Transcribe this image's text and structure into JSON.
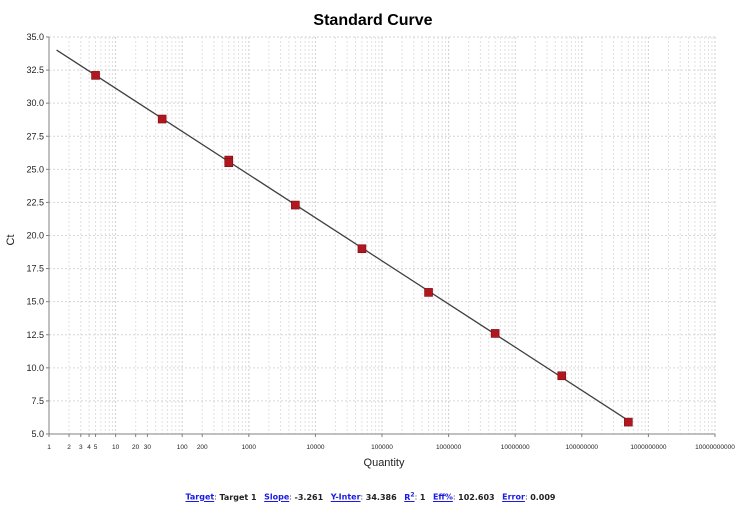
{
  "chart_data": {
    "type": "scatter",
    "title": "Standard Curve",
    "xlabel": "Quantity",
    "ylabel": "Ct",
    "x_scale": "log",
    "xlim": [
      1,
      10000000000
    ],
    "ylim": [
      5.0,
      35.0
    ],
    "grid": true,
    "x_tick_labels": [
      {
        "value": 1,
        "label": "1"
      },
      {
        "value": 2,
        "label": "2"
      },
      {
        "value": 3,
        "label": "3"
      },
      {
        "value": 4,
        "label": "4"
      },
      {
        "value": 5,
        "label": "5"
      },
      {
        "value": 10,
        "label": "10"
      },
      {
        "value": 20,
        "label": "20"
      },
      {
        "value": 30,
        "label": "30"
      },
      {
        "value": 100,
        "label": "100"
      },
      {
        "value": 200,
        "label": "200"
      },
      {
        "value": 1000,
        "label": "1000"
      },
      {
        "value": 10000,
        "label": "10000"
      },
      {
        "value": 100000,
        "label": "100000"
      },
      {
        "value": 1000000,
        "label": "1000000"
      },
      {
        "value": 10000000,
        "label": "10000000"
      },
      {
        "value": 100000000,
        "label": "100000000"
      },
      {
        "value": 1000000000,
        "label": "1000000000"
      },
      {
        "value": 10000000000,
        "label": "10000000000"
      }
    ],
    "y_ticks": [
      {
        "value": 5.0,
        "label": "5.0"
      },
      {
        "value": 7.5,
        "label": "7.5"
      },
      {
        "value": 10.0,
        "label": "10.0"
      },
      {
        "value": 12.5,
        "label": "12.5"
      },
      {
        "value": 15.0,
        "label": "15.0"
      },
      {
        "value": 17.5,
        "label": "17.5"
      },
      {
        "value": 20.0,
        "label": "20.0"
      },
      {
        "value": 22.5,
        "label": "22.5"
      },
      {
        "value": 25.0,
        "label": "25.0"
      },
      {
        "value": 27.5,
        "label": "27.5"
      },
      {
        "value": 30.0,
        "label": "30.0"
      },
      {
        "value": 32.5,
        "label": "32.5"
      },
      {
        "value": 35.0,
        "label": "35.0"
      }
    ],
    "series": [
      {
        "points": [
          {
            "x": 5,
            "y": 32.1
          },
          {
            "x": 50,
            "y": 28.8
          },
          {
            "x": 500,
            "y": 25.7
          },
          {
            "x": 500,
            "y": 25.5
          },
          {
            "x": 5000,
            "y": 22.3
          },
          {
            "x": 50000,
            "y": 19.0
          },
          {
            "x": 500000,
            "y": 15.7
          },
          {
            "x": 5000000,
            "y": 12.6
          },
          {
            "x": 50000000,
            "y": 9.4
          },
          {
            "x": 500000000,
            "y": 5.9
          }
        ],
        "color": "#b0171f"
      }
    ],
    "fit_line": {
      "slope": -3.261,
      "intercept": 34.386,
      "x_from": 1.3,
      "x_to": 500000000,
      "color": "#404040"
    }
  },
  "stats": {
    "target_label": "Target",
    "target_value": "Target 1",
    "slope_label": "Slope",
    "slope_value": "-3.261",
    "yinter_label": "Y-Inter",
    "yinter_value": "34.386",
    "r2_label_base": "R",
    "r2_label_sup": "2",
    "r2_value": "1",
    "eff_label": "Eff%",
    "eff_value": "102.603",
    "error_label": "Error",
    "error_value": "0.009"
  }
}
